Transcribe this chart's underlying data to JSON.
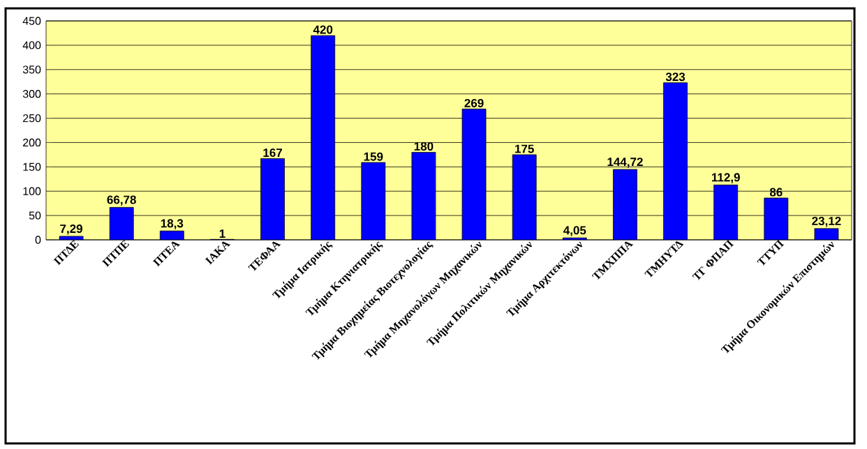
{
  "chart_data": {
    "type": "bar",
    "categories": [
      "ΠΤΔΕ",
      "ΠΤΠΕ",
      "ΠΤΕΑ",
      "ΙΑΚΑ",
      "ΤΕΦΑΑ",
      "Τμήμα Ιατρικής",
      "Τμήμα Κτηνιατρικής",
      "Τμήμα Βιοχημείας Βιοτεχνολογίας",
      "Τμήμα Μηχανολόγων Μηχανικών",
      "Τμήμα Πολιτικών Μηχανικών",
      "Τμήμα Αρχιτεκτόνων",
      "ΤΜΧΠΠΑ",
      "ΤΜΗΥΤΔ",
      "ΤΓ ΦΠΑΠ",
      "ΤΤΥΠ",
      "Τμήμα Οικονομικών Επιστημών"
    ],
    "values": [
      7.29,
      66.78,
      18.3,
      1,
      167,
      420,
      159,
      180,
      269,
      175,
      4.05,
      144.72,
      323,
      112.9,
      86,
      23.12
    ],
    "value_labels": [
      "7,29",
      "66,78",
      "18,3",
      "1",
      "167",
      "420",
      "159",
      "180",
      "269",
      "175",
      "4,05",
      "144,72",
      "323",
      "112,9",
      "86",
      "23,12"
    ],
    "color": "#0000ff",
    "ylim": [
      0,
      450
    ],
    "yticks": [
      0,
      50,
      100,
      150,
      200,
      250,
      300,
      350,
      400,
      450
    ],
    "grid": "y"
  }
}
